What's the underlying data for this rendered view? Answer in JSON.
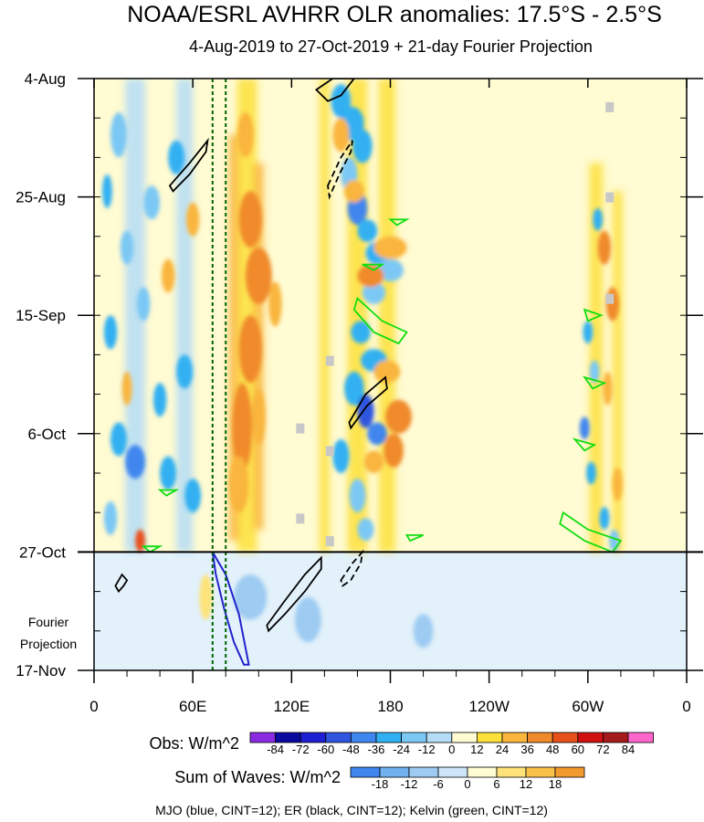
{
  "chart_data": {
    "type": "heatmap",
    "title": "NOAA/ESRL AVHRR OLR anomalies: 17.5°S - 2.5°S",
    "subtitle": "4-Aug-2019 to 27-Oct-2019 + 21-day Fourier Projection",
    "x_ticks": [
      "0",
      "60E",
      "120E",
      "180",
      "120W",
      "60W",
      "0"
    ],
    "x_tick_longitudes": [
      0,
      60,
      120,
      180,
      240,
      300,
      360
    ],
    "y_ticks": [
      "4-Aug",
      "25-Aug",
      "15-Sep",
      "6-Oct",
      "27-Oct",
      "17-Nov"
    ],
    "y_tick_days": [
      0,
      21,
      42,
      63,
      84,
      105
    ],
    "projection_label_line1": "Fourier",
    "projection_label_line2": "Projection",
    "projection_start_day": 84,
    "reference_longitudes": [
      72,
      80
    ],
    "obs_colorbar": {
      "label": "Obs: W/m^2",
      "levels": [
        "-84",
        "-72",
        "-60",
        "-48",
        "-36",
        "-24",
        "-12",
        "0",
        "12",
        "24",
        "36",
        "48",
        "60",
        "72",
        "84"
      ],
      "colors": [
        "#8a2be2",
        "#0a0aa0",
        "#1e1ed2",
        "#2f55e0",
        "#3f86ee",
        "#31b0f2",
        "#7cc8f5",
        "#b4dcf7",
        "#fffbd2",
        "#fde03a",
        "#f9b53c",
        "#f08a2a",
        "#e8501a",
        "#d11111",
        "#a51a1a",
        "#ff66cc"
      ]
    },
    "waves_colorbar": {
      "label": "Sum of Waves: W/m^2",
      "levels": [
        "-18",
        "-12",
        "-6",
        "0",
        "6",
        "12",
        "18"
      ],
      "colors": [
        "#3f86ee",
        "#6fb2ee",
        "#9dcbf2",
        "#cde6f7",
        "#fffbd2",
        "#fde37a",
        "#f9c14a",
        "#f39a2e"
      ]
    },
    "footer": "MJO (blue, CINT=12); ER (black, CINT=12); Kelvin (green, CINT=12)",
    "blobs": [
      {
        "lon": 150,
        "day": 4,
        "rx": 6,
        "ry": 3,
        "v": -30
      },
      {
        "lon": 157,
        "day": 8,
        "rx": 7,
        "ry": 3,
        "v": -36
      },
      {
        "lon": 163,
        "day": 12,
        "rx": 6,
        "ry": 3,
        "v": -30
      },
      {
        "lon": 155,
        "day": 17,
        "rx": 5,
        "ry": 3,
        "v": -24
      },
      {
        "lon": 160,
        "day": 23,
        "rx": 6,
        "ry": 3,
        "v": -48
      },
      {
        "lon": 166,
        "day": 27,
        "rx": 6,
        "ry": 2,
        "v": -36
      },
      {
        "lon": 172,
        "day": 31,
        "rx": 7,
        "ry": 2,
        "v": -36
      },
      {
        "lon": 180,
        "day": 34,
        "rx": 8,
        "ry": 2,
        "v": -24
      },
      {
        "lon": 170,
        "day": 38,
        "rx": 7,
        "ry": 2,
        "v": -24
      },
      {
        "lon": 162,
        "day": 45,
        "rx": 6,
        "ry": 2,
        "v": -30
      },
      {
        "lon": 170,
        "day": 50,
        "rx": 8,
        "ry": 2,
        "v": -36
      },
      {
        "lon": 158,
        "day": 55,
        "rx": 6,
        "ry": 3,
        "v": -36
      },
      {
        "lon": 165,
        "day": 59,
        "rx": 5,
        "ry": 3,
        "v": -60
      },
      {
        "lon": 172,
        "day": 63,
        "rx": 6,
        "ry": 2,
        "v": -48
      },
      {
        "lon": 150,
        "day": 67,
        "rx": 5,
        "ry": 3,
        "v": -36
      },
      {
        "lon": 160,
        "day": 74,
        "rx": 5,
        "ry": 3,
        "v": -24
      },
      {
        "lon": 165,
        "day": 80,
        "rx": 5,
        "ry": 2,
        "v": -24
      },
      {
        "lon": 150,
        "day": 10,
        "rx": 5,
        "ry": 3,
        "v": 24
      },
      {
        "lon": 158,
        "day": 20,
        "rx": 6,
        "ry": 2,
        "v": 24
      },
      {
        "lon": 168,
        "day": 35,
        "rx": 8,
        "ry": 2,
        "v": 36
      },
      {
        "lon": 180,
        "day": 30,
        "rx": 10,
        "ry": 2,
        "v": 24
      },
      {
        "lon": 178,
        "day": 52,
        "rx": 8,
        "ry": 2,
        "v": 24
      },
      {
        "lon": 185,
        "day": 60,
        "rx": 8,
        "ry": 3,
        "v": 36
      },
      {
        "lon": 182,
        "day": 66,
        "rx": 6,
        "ry": 3,
        "v": 36
      },
      {
        "lon": 170,
        "day": 68,
        "rx": 6,
        "ry": 2,
        "v": 24
      },
      {
        "lon": 15,
        "day": 10,
        "rx": 5,
        "ry": 4,
        "v": -24
      },
      {
        "lon": 50,
        "day": 14,
        "rx": 5,
        "ry": 3,
        "v": -36
      },
      {
        "lon": 35,
        "day": 22,
        "rx": 5,
        "ry": 3,
        "v": -24
      },
      {
        "lon": 20,
        "day": 30,
        "rx": 4,
        "ry": 3,
        "v": -24
      },
      {
        "lon": 10,
        "day": 45,
        "rx": 4,
        "ry": 3,
        "v": -30
      },
      {
        "lon": 55,
        "day": 52,
        "rx": 5,
        "ry": 3,
        "v": -36
      },
      {
        "lon": 40,
        "day": 57,
        "rx": 4,
        "ry": 3,
        "v": -36
      },
      {
        "lon": 15,
        "day": 64,
        "rx": 5,
        "ry": 3,
        "v": -36
      },
      {
        "lon": 25,
        "day": 68,
        "rx": 6,
        "ry": 3,
        "v": -48
      },
      {
        "lon": 45,
        "day": 70,
        "rx": 5,
        "ry": 3,
        "v": -30
      },
      {
        "lon": 60,
        "day": 74,
        "rx": 5,
        "ry": 3,
        "v": -30
      },
      {
        "lon": 10,
        "day": 78,
        "rx": 4,
        "ry": 3,
        "v": -24
      },
      {
        "lon": 30,
        "day": 40,
        "rx": 4,
        "ry": 3,
        "v": -24
      },
      {
        "lon": 8,
        "day": 20,
        "rx": 3,
        "ry": 3,
        "v": -36
      },
      {
        "lon": 28,
        "day": 82,
        "rx": 3,
        "ry": 2,
        "v": 48
      },
      {
        "lon": 45,
        "day": 35,
        "rx": 4,
        "ry": 3,
        "v": 24
      },
      {
        "lon": 60,
        "day": 25,
        "rx": 4,
        "ry": 3,
        "v": 24
      },
      {
        "lon": 20,
        "day": 55,
        "rx": 3,
        "ry": 3,
        "v": 24
      },
      {
        "lon": 92,
        "day": 10,
        "rx": 5,
        "ry": 4,
        "v": 30
      },
      {
        "lon": 95,
        "day": 25,
        "rx": 7,
        "ry": 5,
        "v": 36
      },
      {
        "lon": 100,
        "day": 35,
        "rx": 8,
        "ry": 5,
        "v": 36
      },
      {
        "lon": 95,
        "day": 48,
        "rx": 7,
        "ry": 6,
        "v": 36
      },
      {
        "lon": 90,
        "day": 62,
        "rx": 6,
        "ry": 8,
        "v": 36
      },
      {
        "lon": 88,
        "day": 72,
        "rx": 6,
        "ry": 5,
        "v": 30
      },
      {
        "lon": 110,
        "day": 40,
        "rx": 4,
        "ry": 4,
        "v": 24
      },
      {
        "lon": 100,
        "day": 60,
        "rx": 4,
        "ry": 5,
        "v": 24
      },
      {
        "lon": 306,
        "day": 25,
        "rx": 3,
        "ry": 2,
        "v": -30
      },
      {
        "lon": 300,
        "day": 45,
        "rx": 3,
        "ry": 2,
        "v": -36
      },
      {
        "lon": 304,
        "day": 52,
        "rx": 3,
        "ry": 2,
        "v": -24
      },
      {
        "lon": 298,
        "day": 62,
        "rx": 3,
        "ry": 2,
        "v": -48
      },
      {
        "lon": 302,
        "day": 70,
        "rx": 3,
        "ry": 2,
        "v": -36
      },
      {
        "lon": 310,
        "day": 78,
        "rx": 3,
        "ry": 2,
        "v": -30
      },
      {
        "lon": 316,
        "day": 82,
        "rx": 3,
        "ry": 2,
        "v": -24
      },
      {
        "lon": 310,
        "day": 30,
        "rx": 4,
        "ry": 3,
        "v": 36
      },
      {
        "lon": 315,
        "day": 40,
        "rx": 4,
        "ry": 3,
        "v": 36
      },
      {
        "lon": 312,
        "day": 55,
        "rx": 3,
        "ry": 3,
        "v": 24
      },
      {
        "lon": 318,
        "day": 72,
        "rx": 3,
        "ry": 3,
        "v": 24
      },
      {
        "lon": 95,
        "day": 92,
        "rx": 10,
        "ry": 4,
        "v": -9
      },
      {
        "lon": 130,
        "day": 96,
        "rx": 8,
        "ry": 4,
        "v": -9
      },
      {
        "lon": 200,
        "day": 98,
        "rx": 6,
        "ry": 3,
        "v": -9
      },
      {
        "lon": 68,
        "day": 92,
        "rx": 4,
        "ry": 4,
        "v": 9
      }
    ],
    "bands": [
      {
        "lon": 93,
        "w": 6,
        "day0": 0,
        "day1": 84,
        "v": 18
      },
      {
        "lon": 85,
        "w": 3,
        "day0": 10,
        "day1": 82,
        "v": 24
      },
      {
        "lon": 100,
        "w": 3,
        "day0": 15,
        "day1": 80,
        "v": 24
      },
      {
        "lon": 160,
        "w": 6,
        "day0": 0,
        "day1": 84,
        "v": 12
      },
      {
        "lon": 178,
        "w": 5,
        "day0": 0,
        "day1": 84,
        "v": 12
      },
      {
        "lon": 305,
        "w": 4,
        "day0": 15,
        "day1": 84,
        "v": 12
      },
      {
        "lon": 318,
        "w": 3,
        "day0": 20,
        "day1": 84,
        "v": 12
      },
      {
        "lon": 25,
        "w": 6,
        "day0": 0,
        "day1": 84,
        "v": -12
      },
      {
        "lon": 55,
        "w": 5,
        "day0": 0,
        "day1": 84,
        "v": -12
      },
      {
        "lon": 140,
        "w": 3,
        "day0": 0,
        "day1": 84,
        "v": 12
      }
    ],
    "missing_cells": [
      {
        "lon": 313,
        "day": 5
      },
      {
        "lon": 313,
        "day": 21
      },
      {
        "lon": 313,
        "day": 39
      },
      {
        "lon": 143,
        "day": 50
      },
      {
        "lon": 125,
        "day": 62
      },
      {
        "lon": 143,
        "day": 66
      },
      {
        "lon": 125,
        "day": 78
      },
      {
        "lon": 143,
        "day": 82
      }
    ],
    "mjo_contours": [
      {
        "style": "solid",
        "points": [
          [
            72,
            84
          ],
          [
            80,
            88
          ],
          [
            88,
            95
          ],
          [
            92,
            101
          ],
          [
            94,
            104
          ],
          [
            91,
            104
          ],
          [
            85,
            100
          ],
          [
            79,
            94
          ],
          [
            74,
            88
          ],
          [
            72,
            84
          ]
        ]
      }
    ],
    "er_contours": [
      {
        "style": "solid",
        "points": [
          [
            135,
            2
          ],
          [
            145,
            0
          ],
          [
            158,
            0
          ],
          [
            150,
            3
          ],
          [
            142,
            4
          ],
          [
            135,
            2
          ]
        ]
      },
      {
        "style": "solid",
        "points": [
          [
            46,
            19
          ],
          [
            58,
            15
          ],
          [
            69,
            11
          ],
          [
            68,
            13
          ],
          [
            58,
            17
          ],
          [
            48,
            20
          ],
          [
            46,
            19
          ]
        ]
      },
      {
        "style": "solid",
        "points": [
          [
            155,
            61
          ],
          [
            165,
            56
          ],
          [
            177,
            53
          ],
          [
            178,
            55
          ],
          [
            166,
            58
          ],
          [
            156,
            62
          ],
          [
            155,
            61
          ]
        ]
      },
      {
        "style": "solid",
        "points": [
          [
            105,
            97
          ],
          [
            115,
            93
          ],
          [
            128,
            88
          ],
          [
            138,
            85
          ],
          [
            138,
            87
          ],
          [
            128,
            91
          ],
          [
            116,
            95
          ],
          [
            106,
            98
          ],
          [
            105,
            97
          ]
        ]
      },
      {
        "style": "dashed",
        "points": [
          [
            142,
            19
          ],
          [
            150,
            14
          ],
          [
            157,
            11
          ],
          [
            156,
            13
          ],
          [
            149,
            17
          ],
          [
            143,
            21
          ],
          [
            142,
            19
          ]
        ]
      },
      {
        "style": "dashed",
        "points": [
          [
            150,
            89
          ],
          [
            157,
            86
          ],
          [
            163,
            84
          ],
          [
            162,
            86
          ],
          [
            156,
            89
          ],
          [
            151,
            90
          ],
          [
            150,
            89
          ]
        ]
      },
      {
        "style": "solid",
        "points": [
          [
            13,
            90
          ],
          [
            17,
            88
          ],
          [
            20,
            89
          ],
          [
            18,
            90
          ],
          [
            15,
            91
          ],
          [
            13,
            90
          ]
        ]
      }
    ],
    "kelvin_contours": [
      {
        "points": [
          [
            160,
            39
          ],
          [
            175,
            43
          ],
          [
            190,
            45
          ],
          [
            185,
            47
          ],
          [
            170,
            45
          ],
          [
            158,
            41
          ],
          [
            160,
            39
          ]
        ]
      },
      {
        "points": [
          [
            285,
            77
          ],
          [
            300,
            80
          ],
          [
            320,
            82
          ],
          [
            315,
            84
          ],
          [
            298,
            82
          ],
          [
            283,
            79
          ],
          [
            285,
            77
          ]
        ]
      },
      {
        "points": [
          [
            163,
            33
          ],
          [
            175,
            33
          ],
          [
            170,
            34
          ],
          [
            163,
            33
          ]
        ]
      },
      {
        "points": [
          [
            190,
            81
          ],
          [
            200,
            81
          ],
          [
            192,
            82
          ],
          [
            190,
            81
          ]
        ]
      },
      {
        "points": [
          [
            292,
            64
          ],
          [
            304,
            65
          ],
          [
            298,
            66
          ],
          [
            292,
            64
          ]
        ]
      },
      {
        "points": [
          [
            298,
            41
          ],
          [
            308,
            42
          ],
          [
            300,
            43
          ],
          [
            298,
            41
          ]
        ]
      },
      {
        "points": [
          [
            40,
            73
          ],
          [
            50,
            73
          ],
          [
            44,
            74
          ],
          [
            40,
            73
          ]
        ]
      },
      {
        "points": [
          [
            30,
            83
          ],
          [
            40,
            83
          ],
          [
            34,
            84
          ],
          [
            30,
            83
          ]
        ]
      },
      {
        "points": [
          [
            180,
            25
          ],
          [
            190,
            25
          ],
          [
            184,
            26
          ],
          [
            180,
            25
          ]
        ]
      },
      {
        "points": [
          [
            298,
            53
          ],
          [
            310,
            54
          ],
          [
            303,
            55
          ],
          [
            298,
            53
          ]
        ]
      }
    ]
  }
}
